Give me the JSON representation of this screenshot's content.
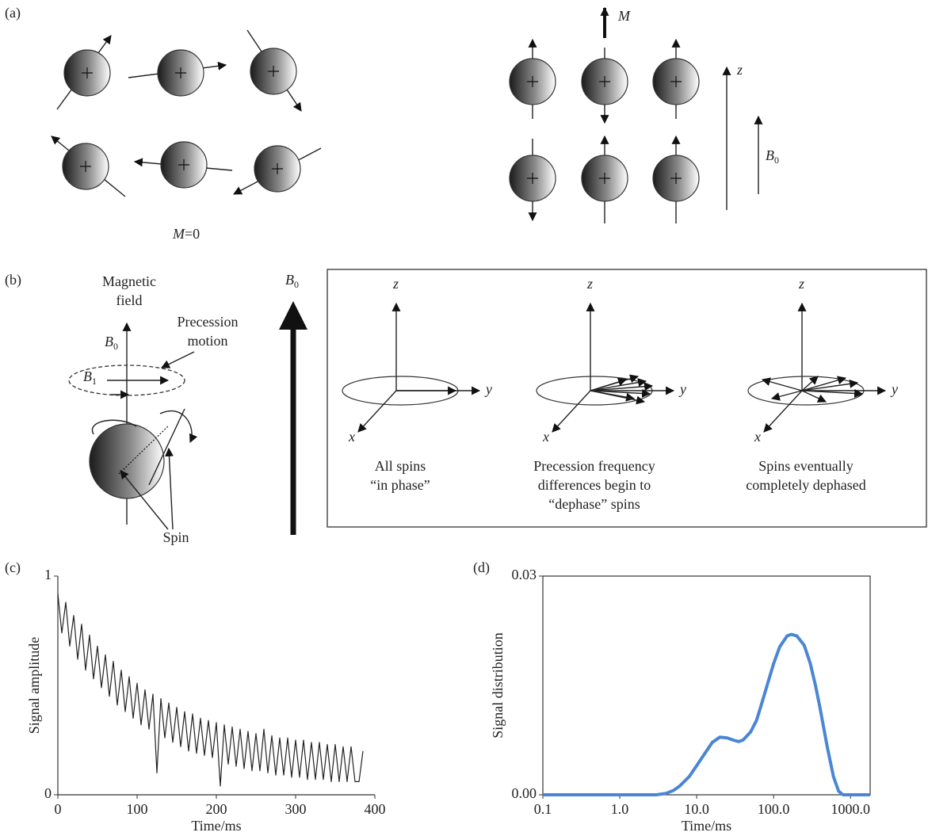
{
  "panel_labels": [
    "(a)",
    "(b)",
    "(c)",
    "(d)"
  ],
  "panel_a": {
    "magnetization": "M",
    "axis_z": "z",
    "field": {
      "symbol": "B",
      "subscript": "0"
    },
    "zero_label": {
      "symbol": "M",
      "rest": "=0"
    }
  },
  "panel_b": {
    "magnetic_field": [
      "Magnetic",
      "field"
    ],
    "precession": [
      "Precession",
      "motion"
    ],
    "field_b0": {
      "symbol": "B",
      "subscript": "0"
    },
    "field_b1": {
      "symbol": "B",
      "subscript": "1"
    },
    "spin": "Spin",
    "big_field": {
      "symbol": "B",
      "subscript": "0"
    },
    "stages": [
      {
        "axes": [
          "z",
          "y",
          "x"
        ],
        "caption": [
          "All spins",
          "“in phase”"
        ]
      },
      {
        "axes": [
          "z",
          "y",
          "x"
        ],
        "caption": [
          "Precession frequency",
          "differences begin to",
          "“dephase” spins"
        ]
      },
      {
        "axes": [
          "z",
          "y",
          "x"
        ],
        "caption": [
          "Spins eventually",
          "completely dephased"
        ]
      }
    ]
  },
  "chart_data": [
    {
      "type": "line",
      "xlabel": "Time/ms",
      "ylabel": "Signal amplitude",
      "color": "#222222",
      "xlim": [
        0,
        400
      ],
      "ylim": [
        0,
        1
      ],
      "xticks": [
        0,
        100,
        200,
        300,
        400
      ],
      "yticks": [
        0,
        1
      ],
      "x": [
        0,
        5,
        10,
        15,
        20,
        25,
        30,
        35,
        40,
        45,
        50,
        55,
        60,
        65,
        70,
        75,
        80,
        85,
        90,
        95,
        100,
        105,
        110,
        115,
        120,
        125,
        130,
        135,
        140,
        145,
        150,
        155,
        160,
        165,
        170,
        175,
        180,
        185,
        190,
        195,
        200,
        205,
        210,
        215,
        220,
        225,
        230,
        235,
        240,
        245,
        250,
        255,
        260,
        265,
        270,
        275,
        280,
        285,
        290,
        295,
        300,
        305,
        310,
        315,
        320,
        325,
        330,
        335,
        340,
        345,
        350,
        355,
        360,
        365,
        370,
        375,
        380,
        385
      ],
      "values": [
        0.92,
        0.74,
        0.88,
        0.68,
        0.82,
        0.62,
        0.78,
        0.57,
        0.73,
        0.53,
        0.68,
        0.49,
        0.64,
        0.45,
        0.61,
        0.41,
        0.57,
        0.38,
        0.54,
        0.35,
        0.51,
        0.32,
        0.48,
        0.3,
        0.46,
        0.1,
        0.44,
        0.26,
        0.42,
        0.24,
        0.4,
        0.22,
        0.38,
        0.2,
        0.37,
        0.19,
        0.35,
        0.18,
        0.34,
        0.17,
        0.33,
        0.04,
        0.32,
        0.14,
        0.31,
        0.13,
        0.3,
        0.12,
        0.29,
        0.11,
        0.28,
        0.11,
        0.3,
        0.1,
        0.27,
        0.09,
        0.26,
        0.09,
        0.26,
        0.08,
        0.25,
        0.08,
        0.25,
        0.07,
        0.24,
        0.07,
        0.24,
        0.07,
        0.23,
        0.06,
        0.23,
        0.06,
        0.22,
        0.06,
        0.22,
        0.06,
        0.06,
        0.2
      ]
    },
    {
      "type": "line",
      "xlabel": "Time/ms",
      "ylabel": "Signal distribution",
      "color": "#4a86d4",
      "log_x": true,
      "frame": true,
      "xlim": [
        0.1,
        1800
      ],
      "ylim": [
        0,
        0.03
      ],
      "xticks": [
        0.1,
        {
          "value": 1,
          "label": "1.0"
        },
        {
          "value": 10,
          "label": "10.0"
        },
        {
          "value": 100,
          "label": "100.0"
        },
        {
          "value": 1000,
          "label": "1000.0"
        }
      ],
      "yticks": [
        {
          "value": 0,
          "label": "0.00"
        },
        {
          "value": 0.03,
          "label": "0.03"
        }
      ],
      "x": [
        0.1,
        1,
        3,
        4,
        5,
        6,
        8,
        10,
        13,
        16,
        20,
        25,
        30,
        35,
        40,
        50,
        60,
        70,
        85,
        100,
        120,
        150,
        170,
        200,
        250,
        300,
        350,
        400,
        500,
        600,
        700,
        800,
        1000,
        1800
      ],
      "values": [
        0,
        0,
        0,
        0.0002,
        0.0006,
        0.0012,
        0.0025,
        0.004,
        0.0058,
        0.0072,
        0.0079,
        0.0078,
        0.0075,
        0.0073,
        0.0075,
        0.0086,
        0.0102,
        0.0125,
        0.0155,
        0.018,
        0.0203,
        0.0218,
        0.022,
        0.0218,
        0.0205,
        0.018,
        0.015,
        0.012,
        0.0065,
        0.0025,
        0.0005,
        0,
        0,
        0
      ]
    }
  ]
}
